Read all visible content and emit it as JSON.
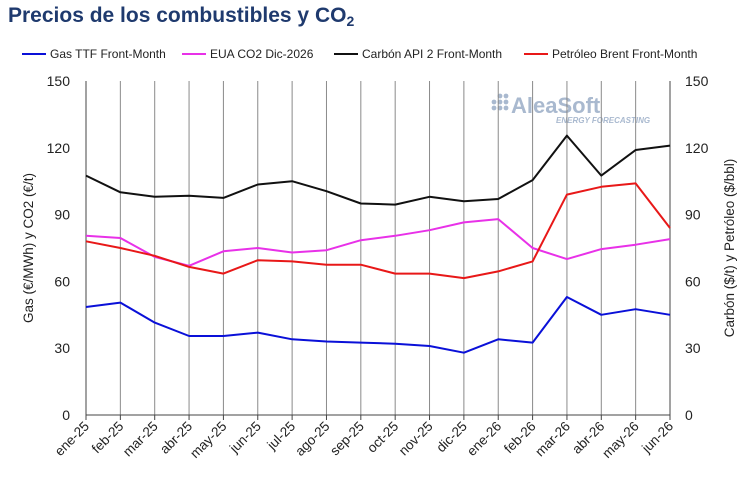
{
  "title": {
    "main": "Precios de los combustibles y CO",
    "sub": "2"
  },
  "logo": {
    "name": "AleaSoft",
    "tagline": "ENERGY FORECASTING",
    "color": "#a9b9cf"
  },
  "chart_data": {
    "type": "line",
    "categories": [
      "ene-25",
      "feb-25",
      "mar-25",
      "abr-25",
      "may-25",
      "jun-25",
      "jul-25",
      "ago-25",
      "sep-25",
      "oct-25",
      "nov-25",
      "dic-25",
      "ene-26",
      "feb-26",
      "mar-26",
      "abr-26",
      "may-26",
      "jun-26"
    ],
    "series": [
      {
        "name": "Gas TTF Front-Month",
        "color": "#0a10d8",
        "axis": "left",
        "values": [
          48.5,
          50.5,
          41.5,
          35.5,
          35.5,
          37,
          34,
          33,
          32.5,
          32,
          31,
          28,
          34,
          32.5,
          53,
          45,
          47.5,
          45
        ]
      },
      {
        "name": "EUA CO2 Dic-2026",
        "color": "#e831e8",
        "axis": "left",
        "values": [
          80.5,
          79.5,
          71,
          67,
          73.5,
          75,
          73,
          74,
          78.5,
          80.5,
          83,
          86.5,
          88,
          75,
          70,
          74.5,
          76.5,
          79
        ]
      },
      {
        "name": "Carbón API 2 Front-Month",
        "color": "#111111",
        "axis": "right",
        "values": [
          107.5,
          100,
          98,
          98.5,
          97.5,
          103.5,
          105,
          100.5,
          95,
          94.5,
          98,
          96,
          97,
          105.5,
          125.5,
          107.5,
          119,
          121
        ]
      },
      {
        "name": "Petróleo Brent Front-Month",
        "color": "#e81818",
        "axis": "right",
        "values": [
          78,
          75,
          71.5,
          66.5,
          63.5,
          69.5,
          69,
          67.5,
          67.5,
          63.5,
          63.5,
          61.5,
          64.5,
          69,
          99,
          102.5,
          104,
          84
        ]
      }
    ],
    "ylabel": "Gas (€/MWh) y CO2 (€/t)",
    "y2label": "Carbón ($/t) y Petróleo ($/bbl)",
    "ylim": [
      0,
      150
    ],
    "y2lim": [
      0,
      150
    ],
    "yticks": [
      0,
      30,
      60,
      90,
      120,
      150
    ],
    "grid": "vertical",
    "legend": "top"
  }
}
